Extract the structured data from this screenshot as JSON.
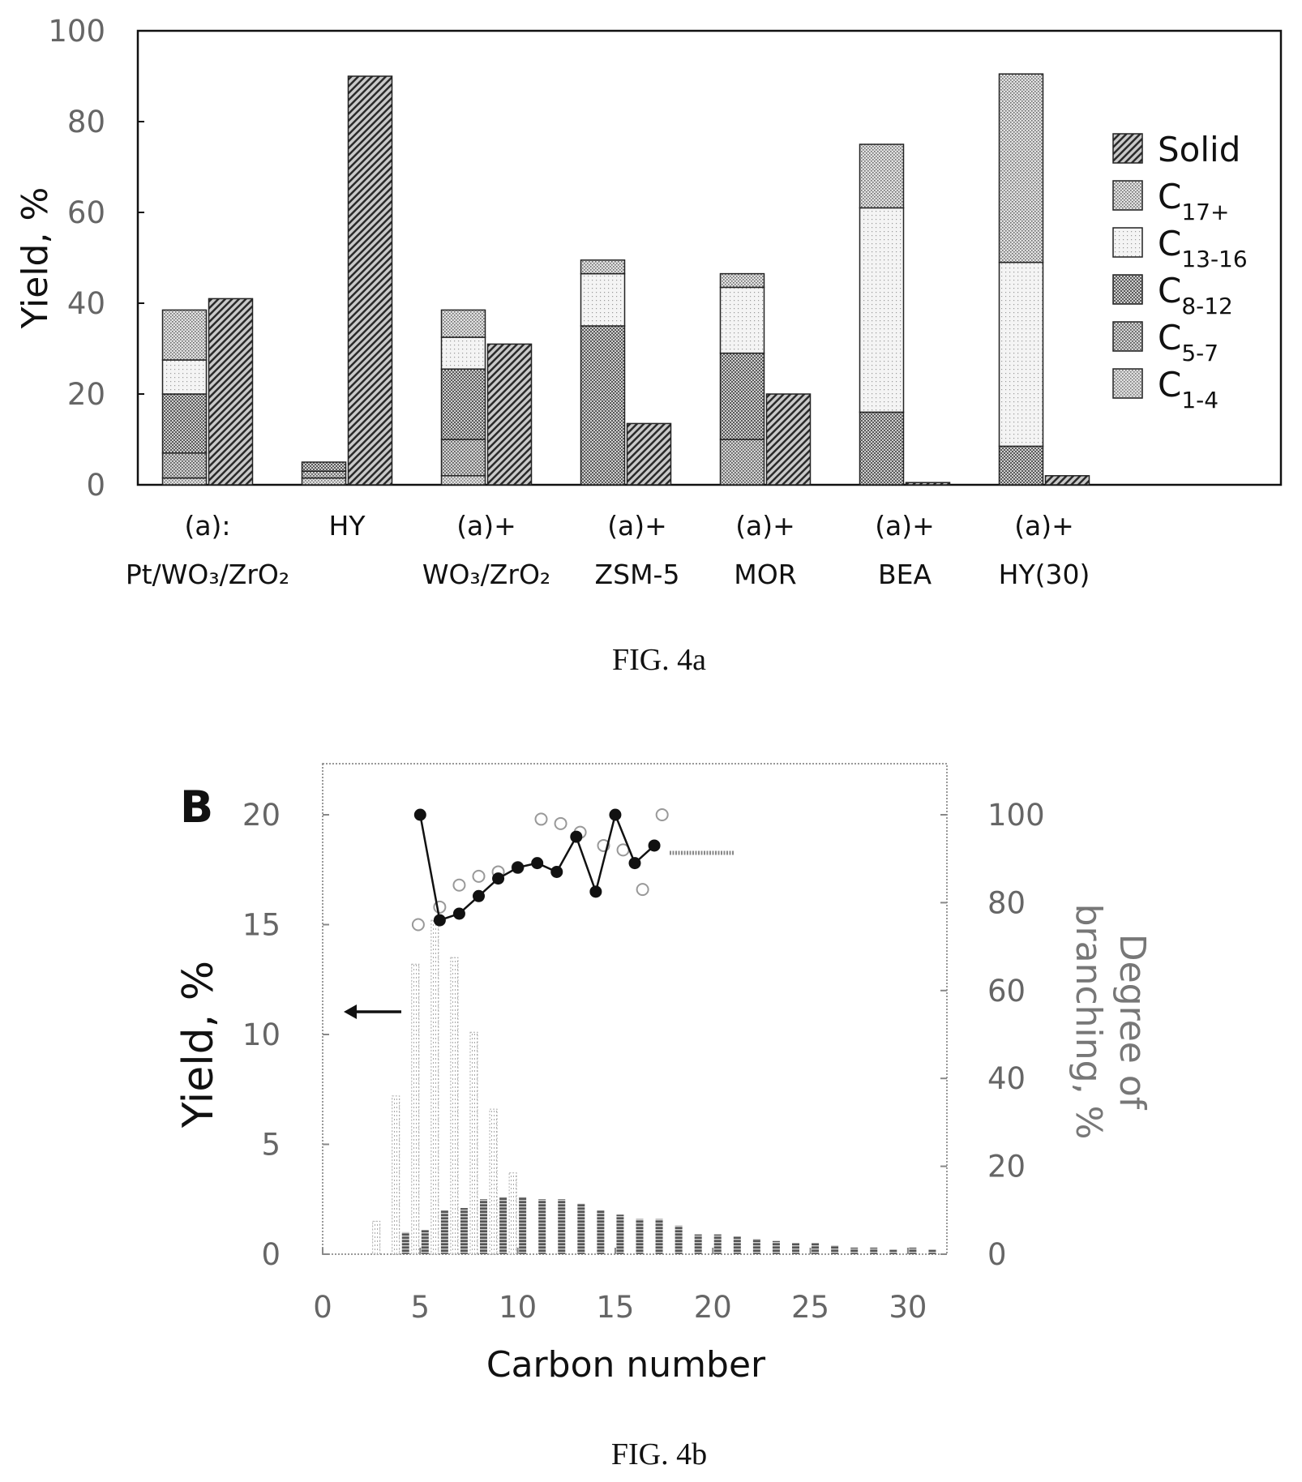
{
  "chart_data": [
    {
      "type": "stacked-bar",
      "ylabel": "Yield, %",
      "ylim": [
        0,
        100
      ],
      "yticks": [
        "0",
        "20",
        "40",
        "60",
        "80",
        "100"
      ],
      "categories": [
        {
          "line1": "(a):",
          "line2": "Pt/WO₃/ZrO₂"
        },
        {
          "line1": "HY",
          "line2": ""
        },
        {
          "line1": "(a)+",
          "line2": "WO₃/ZrO₂"
        },
        {
          "line1": "(a)+",
          "line2": "ZSM-5"
        },
        {
          "line1": "(a)+",
          "line2": "MOR"
        },
        {
          "line1": "(a)+",
          "line2": "BEA"
        },
        {
          "line1": "(a)+",
          "line2": "HY(30)"
        }
      ],
      "legend": [
        {
          "key": "solid",
          "label": "Solid",
          "sub": ""
        },
        {
          "key": "c17",
          "label": "C",
          "sub": "17+"
        },
        {
          "key": "c13",
          "label": "C",
          "sub": "13-16"
        },
        {
          "key": "c8",
          "label": "C",
          "sub": "8-12"
        },
        {
          "key": "c5",
          "label": "C",
          "sub": "5-7"
        },
        {
          "key": "c1",
          "label": "C",
          "sub": "1-4"
        }
      ],
      "stack_order": [
        "c1",
        "c5",
        "c8",
        "c13",
        "c17"
      ],
      "liquid": [
        {
          "c1": 1.5,
          "c5": 5.5,
          "c8": 13,
          "c13": 7.5,
          "c17": 11
        },
        {
          "c1": 1.5,
          "c5": 1.5,
          "c8": 2,
          "c13": 0,
          "c17": 0
        },
        {
          "c1": 2,
          "c5": 8,
          "c8": 15.5,
          "c13": 7,
          "c17": 6
        },
        {
          "c1": 0,
          "c5": 0,
          "c8": 35,
          "c13": 11.5,
          "c17": 3
        },
        {
          "c1": 0,
          "c5": 10,
          "c8": 19,
          "c13": 14.5,
          "c17": 3
        },
        {
          "c1": 0,
          "c5": 0,
          "c8": 16,
          "c13": 45,
          "c17": 14
        },
        {
          "c1": 0,
          "c5": 0,
          "c8": 8.5,
          "c13": 40.5,
          "c17": 41.5
        }
      ],
      "solid": [
        41,
        90,
        31,
        13.5,
        20,
        0.5,
        2
      ],
      "caption": "FIG. 4a"
    },
    {
      "type": "bar+scatter+line",
      "panel_label": "B",
      "xlabel": "Carbon number",
      "ylabel_left": "Yield, %",
      "ylabel_right_line1": "Degree of",
      "ylabel_right_line2": "branching, %",
      "xlim": [
        0,
        32
      ],
      "ylim_left": [
        0,
        20
      ],
      "ylim_right": [
        0,
        100
      ],
      "xticks": [
        "0",
        "5",
        "10",
        "15",
        "20",
        "25",
        "30"
      ],
      "yticks_left": [
        "0",
        "5",
        "10",
        "15",
        "20"
      ],
      "yticks_right": [
        "0",
        "20",
        "40",
        "60",
        "80",
        "100"
      ],
      "series": [
        {
          "kind": "bar",
          "style": "dotted-light",
          "x": [
            3,
            4,
            5,
            6,
            7,
            8,
            9,
            10
          ],
          "values": [
            1.5,
            7.2,
            13.2,
            15.2,
            13.5,
            10.1,
            6.6,
            3.7
          ]
        },
        {
          "kind": "bar",
          "style": "hatched-dark",
          "x": [
            4,
            5,
            6,
            7,
            8,
            9,
            10,
            11,
            12,
            13,
            14,
            15,
            16,
            17,
            18,
            19,
            20,
            21,
            22,
            23,
            24,
            25,
            26,
            27,
            28,
            29,
            30,
            31
          ],
          "values": [
            1.0,
            1.1,
            2.0,
            2.1,
            2.5,
            2.6,
            2.6,
            2.5,
            2.5,
            2.3,
            2.0,
            1.8,
            1.6,
            1.6,
            1.3,
            0.9,
            0.9,
            0.8,
            0.7,
            0.6,
            0.5,
            0.5,
            0.4,
            0.3,
            0.3,
            0.2,
            0.3,
            0.2
          ]
        },
        {
          "kind": "scatter",
          "style": "open-circle",
          "axis": "right",
          "x": [
            4.9,
            6,
            7,
            8,
            9,
            10,
            11.2,
            12.2,
            13.2,
            14.4,
            15.4,
            16.4,
            17.4
          ],
          "values": [
            75,
            79,
            84,
            86,
            87,
            88,
            99,
            98,
            96,
            93,
            92,
            83,
            100
          ]
        },
        {
          "kind": "line",
          "style": "filled-circle",
          "axis": "right",
          "x": [
            5,
            6,
            7,
            8,
            9,
            10,
            11,
            12,
            13,
            14,
            15,
            16,
            17
          ],
          "values": [
            100,
            76,
            77.5,
            81.5,
            85.5,
            88,
            89,
            87,
            95,
            82.5,
            100,
            89,
            93
          ]
        }
      ],
      "caption": "FIG. 4b"
    }
  ]
}
